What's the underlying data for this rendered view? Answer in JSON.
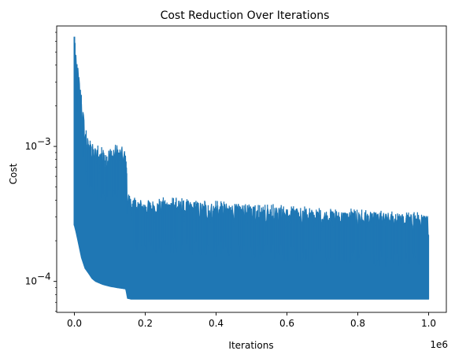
{
  "chart_data": {
    "type": "line",
    "title": "Cost Reduction Over Iterations",
    "xlabel": "Iterations",
    "ylabel": "Cost",
    "x_offset_text": "1e6",
    "xscale": "linear",
    "yscale": "log",
    "xlim": [
      -50000,
      1050000
    ],
    "ylim": [
      5.9e-05,
      0.0078
    ],
    "x_ticks": [
      0,
      0.2,
      0.4,
      0.6,
      0.8,
      1.0
    ],
    "x_tick_labels": [
      "0.0",
      "0.2",
      "0.4",
      "0.6",
      "0.8",
      "1.0"
    ],
    "y_major_ticks": [
      0.0001,
      0.001
    ],
    "y_major_tick_labels": [
      "10",
      "10"
    ],
    "y_major_tick_exponents": [
      "−4",
      "−3"
    ],
    "y_minor_ticks": [
      6e-05,
      7e-05,
      8e-05,
      9e-05,
      0.0002,
      0.0003,
      0.0004,
      0.0005,
      0.0006,
      0.0007,
      0.0008,
      0.0009,
      0.002,
      0.003,
      0.004,
      0.005,
      0.006,
      0.007
    ],
    "grid": false,
    "series": [
      {
        "color": "#1f77b4",
        "x": [
          0,
          5000,
          10000,
          20000,
          30000,
          40000,
          50000,
          60000,
          80000,
          100000,
          120000,
          145000,
          150000,
          160000,
          200000,
          300000,
          400000,
          500000,
          600000,
          700000,
          800000,
          900000,
          1000000
        ],
        "upper": [
          0.0065,
          0.0045,
          0.004,
          0.0025,
          0.0014,
          0.0011,
          0.00105,
          0.001,
          0.00095,
          0.001,
          0.00105,
          0.00095,
          0.00048,
          0.00042,
          0.0004,
          0.0004,
          0.00038,
          0.00037,
          0.00035,
          0.00034,
          0.00033,
          0.00032,
          0.00031
        ],
        "lower": [
          0.00026,
          0.00023,
          0.0002,
          0.00015,
          0.000125,
          0.000115,
          0.000105,
          0.0001,
          9.5e-05,
          9.2e-05,
          9e-05,
          8.8e-05,
          7.5e-05,
          7.4e-05,
          7.4e-05,
          7.4e-05,
          7.4e-05,
          7.4e-05,
          7.4e-05,
          7.4e-05,
          7.4e-05,
          7.4e-05,
          7.4e-05
        ]
      }
    ]
  }
}
